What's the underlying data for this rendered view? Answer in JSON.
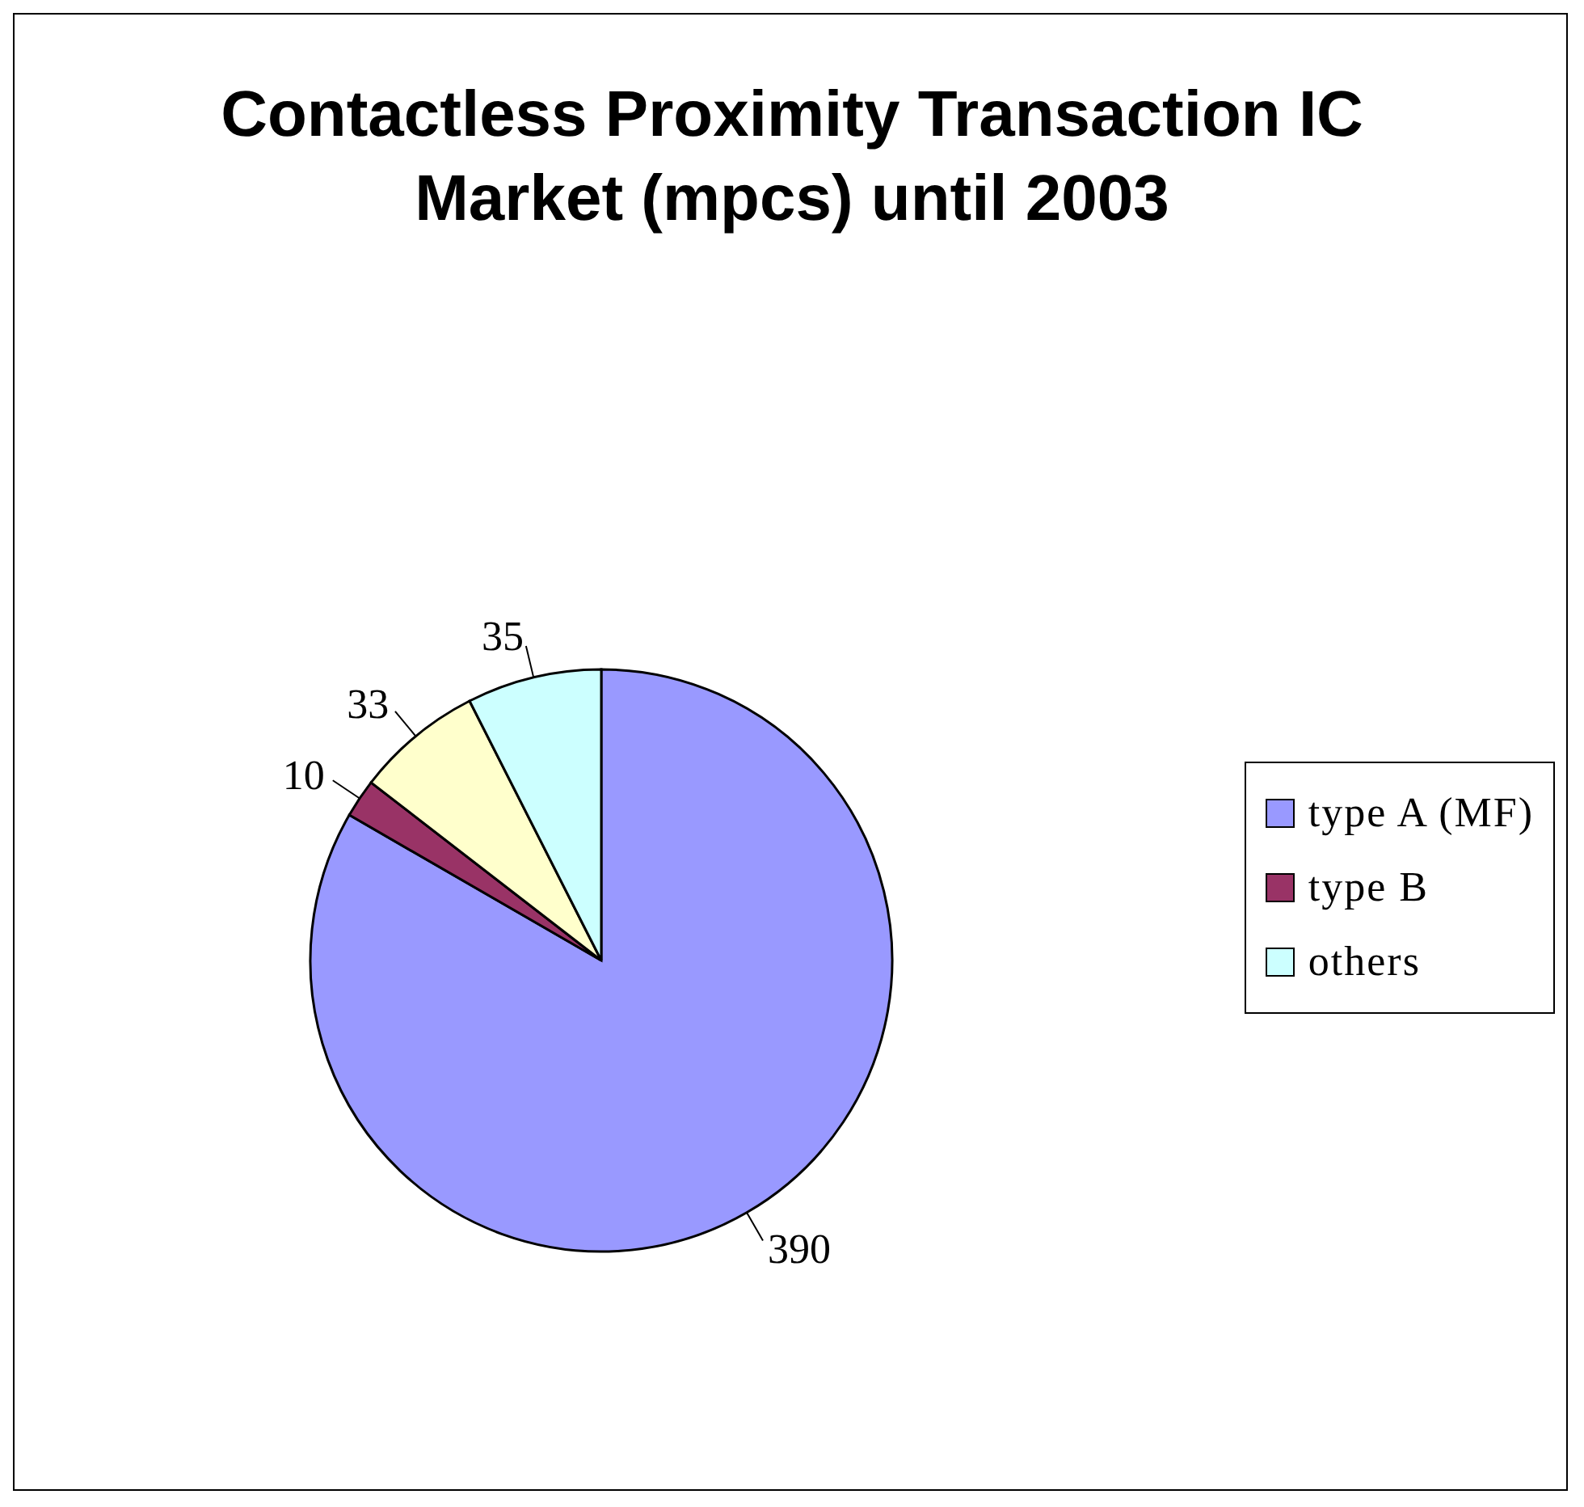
{
  "chart_data": {
    "type": "pie",
    "title": "Contactless Proximity Transaction IC Market (mpcs) until 2003",
    "categories": [
      "type A (MF)",
      "type B",
      null,
      "others"
    ],
    "values": [
      390,
      10,
      33,
      35
    ],
    "colors": [
      "#9999ff",
      "#993366",
      "#ffffcc",
      "#ccffff"
    ],
    "data_labels": true,
    "legend": "right"
  }
}
